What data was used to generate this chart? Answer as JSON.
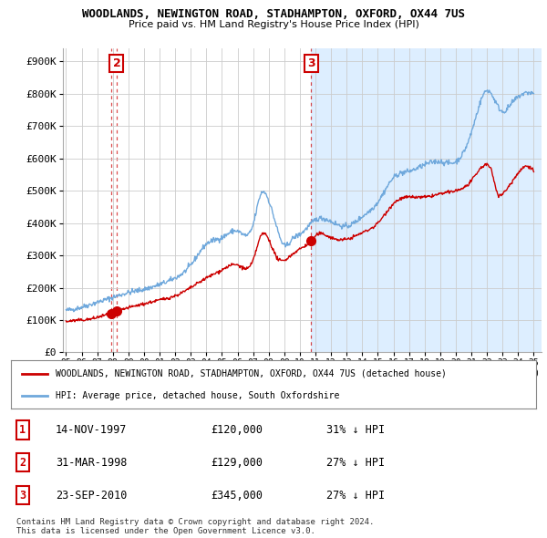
{
  "title": "WOODLANDS, NEWINGTON ROAD, STADHAMPTON, OXFORD, OX44 7US",
  "subtitle": "Price paid vs. HM Land Registry's House Price Index (HPI)",
  "hpi_label": "HPI: Average price, detached house, South Oxfordshire",
  "property_label": "WOODLANDS, NEWINGTON ROAD, STADHAMPTON, OXFORD, OX44 7US (detached house)",
  "legend_footer": "Contains HM Land Registry data © Crown copyright and database right 2024.\nThis data is licensed under the Open Government Licence v3.0.",
  "transactions": [
    {
      "num": 1,
      "date": "14-NOV-1997",
      "price": 120000,
      "pct": "31%",
      "dir": "↓"
    },
    {
      "num": 2,
      "date": "31-MAR-1998",
      "price": 129000,
      "pct": "27%",
      "dir": "↓"
    },
    {
      "num": 3,
      "date": "23-SEP-2010",
      "price": 345000,
      "pct": "27%",
      "dir": "↓"
    }
  ],
  "transaction_dates": [
    1997.87,
    1998.25,
    2010.73
  ],
  "transaction_prices": [
    120000,
    129000,
    345000
  ],
  "hpi_color": "#6fa8dc",
  "hpi_fill_color": "#ddeeff",
  "property_color": "#cc0000",
  "background_color": "#ffffff",
  "grid_color": "#cccccc",
  "ylim": [
    0,
    940000
  ],
  "xlim_start": 1994.8,
  "xlim_end": 2025.5,
  "yticks": [
    0,
    100000,
    200000,
    300000,
    400000,
    500000,
    600000,
    700000,
    800000,
    900000
  ],
  "ytick_labels": [
    "£0",
    "£100K",
    "£200K",
    "£300K",
    "£400K",
    "£500K",
    "£600K",
    "£700K",
    "£800K",
    "£900K"
  ],
  "xtick_years": [
    1995,
    1996,
    1997,
    1998,
    1999,
    2000,
    2001,
    2002,
    2003,
    2004,
    2005,
    2006,
    2007,
    2008,
    2009,
    2010,
    2011,
    2012,
    2013,
    2014,
    2015,
    2016,
    2017,
    2018,
    2019,
    2020,
    2021,
    2022,
    2023,
    2024,
    2025
  ],
  "show_label_at_top": [
    false,
    true,
    true
  ],
  "highlight_start_date": 2010.73
}
